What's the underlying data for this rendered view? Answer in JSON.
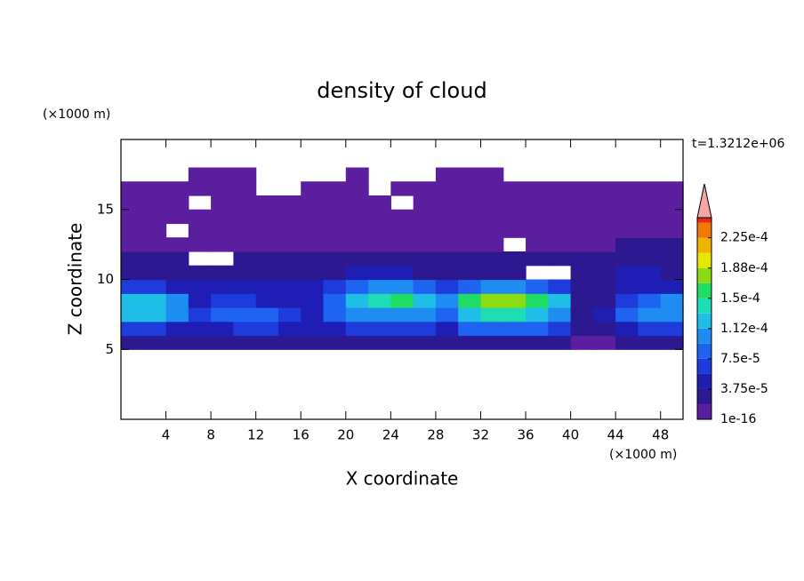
{
  "chart_data": {
    "type": "contour",
    "title": "density of cloud",
    "x_label": "X coordinate",
    "y_label": "Z coordinate",
    "x_unit": "(×1000 m)",
    "y_unit": "(×1000 m)",
    "time_label": "t=1.3212e+06",
    "xlim": [
      0,
      50
    ],
    "ylim": [
      0,
      20
    ],
    "xticks": [
      4,
      8,
      12,
      16,
      20,
      24,
      28,
      32,
      36,
      40,
      44,
      48
    ],
    "yticks": [
      5,
      10,
      15
    ],
    "x": [
      0,
      2,
      4,
      6,
      8,
      10,
      12,
      14,
      16,
      18,
      20,
      22,
      24,
      26,
      28,
      30,
      32,
      34,
      36,
      38,
      40,
      42,
      44,
      46,
      48
    ],
    "z": [
      5,
      6,
      7,
      8,
      9,
      10,
      11,
      12,
      13,
      14,
      15,
      16,
      17
    ],
    "values": [
      [
        2e-05,
        2e-05,
        2e-05,
        2e-05,
        2e-05,
        2e-05,
        2e-05,
        2e-05,
        2e-05,
        2e-05,
        2e-05,
        2e-05,
        2e-05,
        2e-05,
        2e-05,
        3e-05,
        3e-05,
        3e-05,
        3e-05,
        3e-05,
        1e-05,
        1e-05,
        2e-05,
        2e-05,
        2e-05
      ],
      [
        6e-05,
        6e-05,
        5e-05,
        4e-05,
        5e-05,
        6e-05,
        6e-05,
        5e-05,
        4e-05,
        4e-05,
        6e-05,
        7e-05,
        7e-05,
        6e-05,
        5e-05,
        8e-05,
        9e-05,
        9e-05,
        8e-05,
        7e-05,
        2e-05,
        3e-05,
        5e-05,
        6e-05,
        6e-05
      ],
      [
        0.00012,
        0.00012,
        0.0001,
        6e-05,
        8e-05,
        9e-05,
        8e-05,
        6e-05,
        5e-05,
        8e-05,
        0.0001,
        0.00011,
        0.00011,
        0.0001,
        8e-05,
        0.00013,
        0.00014,
        0.00014,
        0.00013,
        0.00011,
        3e-05,
        4e-05,
        8e-05,
        0.0001,
        0.00011
      ],
      [
        0.00013,
        0.00013,
        0.0001,
        5e-05,
        6e-05,
        6e-05,
        5e-05,
        4e-05,
        5e-05,
        8e-05,
        0.00012,
        0.00014,
        0.00015,
        0.00013,
        0.0001,
        0.00016,
        0.00017,
        0.00017,
        0.00016,
        0.00012,
        2e-05,
        3e-05,
        7e-05,
        9e-05,
        0.0001
      ],
      [
        6e-05,
        6e-05,
        5e-05,
        4e-05,
        4e-05,
        4e-05,
        4e-05,
        4e-05,
        4e-05,
        6e-05,
        9e-05,
        0.0001,
        0.0001,
        9e-05,
        7e-05,
        9e-05,
        0.0001,
        0.0001,
        9e-05,
        6e-05,
        2e-05,
        2e-05,
        4e-05,
        5e-05,
        5e-05
      ],
      [
        3e-05,
        3e-05,
        3e-05,
        3e-05,
        3e-05,
        3e-05,
        3e-05,
        3e-05,
        3e-05,
        3e-05,
        4e-05,
        4e-05,
        4e-05,
        3e-05,
        3e-05,
        3e-05,
        3e-05,
        3e-05,
        null,
        null,
        2e-05,
        3e-05,
        4e-05,
        4e-05,
        3e-05
      ],
      [
        2e-05,
        2e-05,
        2e-05,
        null,
        null,
        2e-05,
        2e-05,
        2e-05,
        2e-05,
        2e-05,
        2e-05,
        2e-05,
        2e-05,
        2e-05,
        2e-05,
        2e-05,
        2e-05,
        2e-05,
        2e-05,
        2e-05,
        2e-05,
        2e-05,
        2e-05,
        2e-05,
        2e-05
      ],
      [
        1e-05,
        1e-05,
        1e-05,
        1e-05,
        1e-05,
        1e-05,
        1e-05,
        1e-05,
        1e-05,
        1e-05,
        1e-05,
        1e-05,
        1e-05,
        1e-05,
        1e-05,
        1e-05,
        1e-05,
        null,
        1e-05,
        1e-05,
        1e-05,
        1e-05,
        2e-05,
        2e-05,
        2e-05
      ],
      [
        1e-05,
        1e-05,
        null,
        1e-05,
        1e-05,
        1e-05,
        1e-05,
        1e-05,
        1e-05,
        1e-05,
        1e-05,
        1e-05,
        1e-05,
        1e-05,
        1e-05,
        1e-05,
        1e-05,
        1e-05,
        1e-05,
        1e-05,
        1e-05,
        1e-05,
        1e-05,
        1e-05,
        1e-05
      ],
      [
        1e-05,
        1e-05,
        1e-05,
        1e-05,
        1e-05,
        1e-05,
        1e-05,
        1e-05,
        1e-05,
        1e-05,
        1e-05,
        1e-05,
        1e-05,
        1e-05,
        1e-05,
        1e-05,
        1e-05,
        1e-05,
        1e-05,
        1e-05,
        1e-05,
        1e-05,
        1e-05,
        1e-05,
        1e-05
      ],
      [
        1e-05,
        1e-05,
        1e-05,
        null,
        1e-05,
        1e-05,
        1e-05,
        1e-05,
        1e-05,
        1e-05,
        1e-05,
        1e-05,
        null,
        1e-05,
        1e-05,
        1e-05,
        1e-05,
        1e-05,
        1e-05,
        1e-05,
        1e-05,
        1e-05,
        1e-05,
        1e-05,
        1e-05
      ],
      [
        1e-05,
        1e-05,
        1e-05,
        1e-05,
        1e-05,
        1e-05,
        null,
        null,
        1e-05,
        1e-05,
        1e-05,
        null,
        1e-05,
        1e-05,
        1e-05,
        1e-05,
        1e-05,
        1e-05,
        1e-05,
        1e-05,
        1e-05,
        1e-05,
        1e-05,
        1e-05,
        1e-05
      ],
      [
        null,
        null,
        null,
        1e-05,
        1e-05,
        1e-05,
        null,
        null,
        null,
        null,
        1e-05,
        null,
        null,
        null,
        1e-05,
        1e-05,
        1e-05,
        null,
        null,
        null,
        null,
        null,
        null,
        null,
        null
      ]
    ],
    "levels": [
      1e-16,
      1.875e-05,
      3.75e-05,
      5.625e-05,
      7.5e-05,
      9.375e-05,
      0.0001125,
      0.00013125,
      0.00015,
      0.00016875,
      0.0001875,
      0.00020625,
      0.000225,
      0.00024375
    ],
    "colors": [
      "#5a1e9e",
      "#2c1890",
      "#1e1eb4",
      "#1e3cdc",
      "#1e64f0",
      "#1e8cf0",
      "#1ebee6",
      "#1edcb4",
      "#1edc64",
      "#8cdc14",
      "#e6e600",
      "#f0b400",
      "#f07800",
      "#e62814"
    ],
    "over_color": "#f4a6a6",
    "colorbar_lim": [
      1e-16,
      0.00025
    ],
    "colorbar_ticks": [
      {
        "value": 1e-16,
        "label": "1e-16"
      },
      {
        "value": 3.75e-05,
        "label": "3.75e-5"
      },
      {
        "value": 7.5e-05,
        "label": "7.5e-5"
      },
      {
        "value": 0.0001125,
        "label": "1.12e-4"
      },
      {
        "value": 0.00015,
        "label": "1.5e-4"
      },
      {
        "value": 0.0001875,
        "label": "1.88e-4"
      },
      {
        "value": 0.000225,
        "label": "2.25e-4"
      }
    ]
  }
}
